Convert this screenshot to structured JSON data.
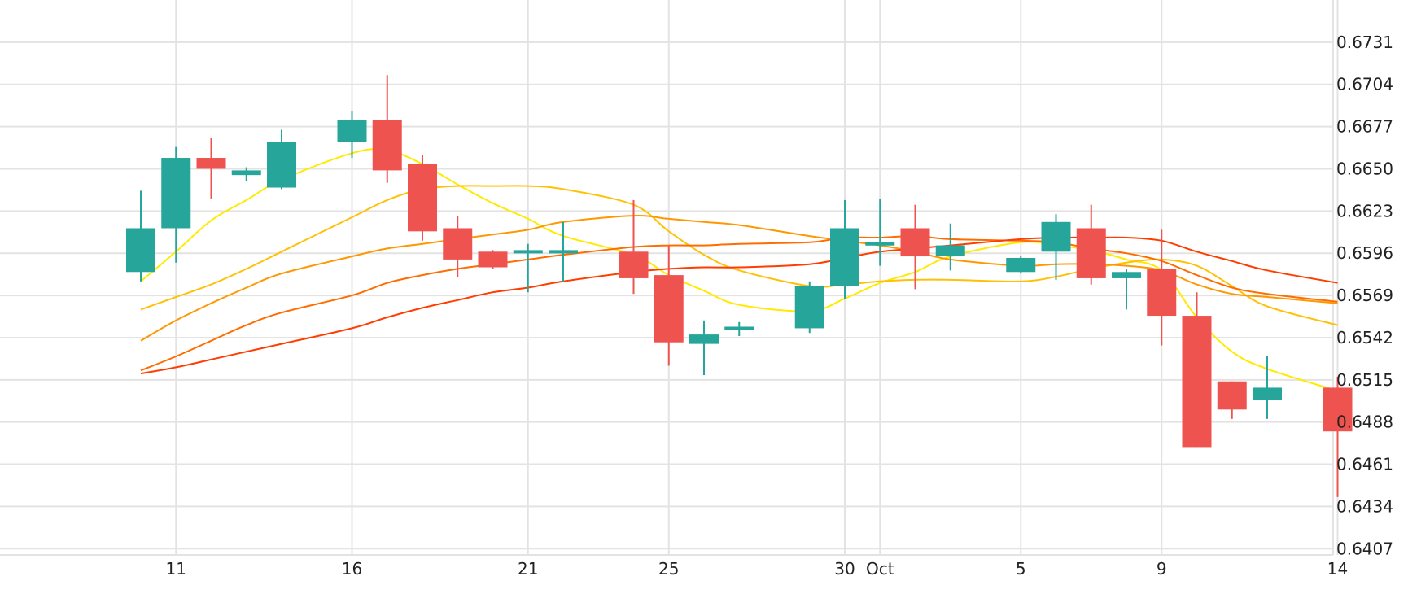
{
  "chart_data": {
    "type": "candlestick",
    "grid": true,
    "colors": {
      "up": "#26a69a",
      "down": "#ef5350",
      "grid": "#e3e3e3",
      "background": "#ffffff",
      "text": "#222222"
    },
    "y_axis": {
      "position": "right",
      "ticks": [
        "0.6731",
        "0.6704",
        "0.6677",
        "0.6650",
        "0.6623",
        "0.6596",
        "0.6569",
        "0.6542",
        "0.6515",
        "0.6488",
        "0.6461",
        "0.6434",
        "0.6407"
      ],
      "range": [
        0.6378,
        0.6758
      ]
    },
    "x_axis": {
      "range": [
        "2023-09-06",
        "2023-10-16"
      ],
      "ticks": [
        {
          "date": "2023-09-11",
          "label": "11"
        },
        {
          "date": "2023-09-16",
          "label": "16"
        },
        {
          "date": "2023-09-21",
          "label": "21"
        },
        {
          "date": "2023-09-25",
          "label": "25"
        },
        {
          "date": "2023-09-30",
          "label": "30"
        },
        {
          "date": "2023-10-01",
          "label": "Oct"
        },
        {
          "date": "2023-10-05",
          "label": "5"
        },
        {
          "date": "2023-10-09",
          "label": "9"
        },
        {
          "date": "2023-10-14",
          "label": "14"
        }
      ]
    },
    "candles": [
      {
        "date": "2023-09-10",
        "open": 0.6584,
        "high": 0.6636,
        "low": 0.6578,
        "close": 0.6612
      },
      {
        "date": "2023-09-11",
        "open": 0.6612,
        "high": 0.6664,
        "low": 0.659,
        "close": 0.6657
      },
      {
        "date": "2023-09-12",
        "open": 0.6657,
        "high": 0.667,
        "low": 0.6631,
        "close": 0.665
      },
      {
        "date": "2023-09-13",
        "open": 0.6646,
        "high": 0.6651,
        "low": 0.6642,
        "close": 0.6649
      },
      {
        "date": "2023-09-14",
        "open": 0.6638,
        "high": 0.6675,
        "low": 0.6637,
        "close": 0.6667
      },
      {
        "date": "2023-09-16",
        "open": 0.6667,
        "high": 0.6687,
        "low": 0.6657,
        "close": 0.6681
      },
      {
        "date": "2023-09-17",
        "open": 0.6681,
        "high": 0.671,
        "low": 0.6641,
        "close": 0.6649
      },
      {
        "date": "2023-09-18",
        "open": 0.6653,
        "high": 0.6659,
        "low": 0.6604,
        "close": 0.661
      },
      {
        "date": "2023-09-19",
        "open": 0.6612,
        "high": 0.662,
        "low": 0.6581,
        "close": 0.6592
      },
      {
        "date": "2023-09-20",
        "open": 0.6597,
        "high": 0.6598,
        "low": 0.6586,
        "close": 0.6587
      },
      {
        "date": "2023-09-21",
        "open": 0.6596,
        "high": 0.6602,
        "low": 0.6571,
        "close": 0.6598
      },
      {
        "date": "2023-09-22",
        "open": 0.6598,
        "high": 0.6616,
        "low": 0.6578,
        "close": 0.6598
      },
      {
        "date": "2023-09-24",
        "open": 0.6597,
        "high": 0.663,
        "low": 0.657,
        "close": 0.658
      },
      {
        "date": "2023-09-25",
        "open": 0.6582,
        "high": 0.6601,
        "low": 0.6524,
        "close": 0.6539
      },
      {
        "date": "2023-09-26",
        "open": 0.6538,
        "high": 0.6553,
        "low": 0.6518,
        "close": 0.6544
      },
      {
        "date": "2023-09-27",
        "open": 0.6548,
        "high": 0.6552,
        "low": 0.6543,
        "close": 0.6549
      },
      {
        "date": "2023-09-29",
        "open": 0.6548,
        "high": 0.6578,
        "low": 0.6545,
        "close": 0.6575
      },
      {
        "date": "2023-09-30",
        "open": 0.6575,
        "high": 0.663,
        "low": 0.6567,
        "close": 0.6612
      },
      {
        "date": "2023-10-01",
        "open": 0.6603,
        "high": 0.6631,
        "low": 0.6588,
        "close": 0.6603
      },
      {
        "date": "2023-10-02",
        "open": 0.6612,
        "high": 0.6627,
        "low": 0.6573,
        "close": 0.6594
      },
      {
        "date": "2023-10-03",
        "open": 0.6594,
        "high": 0.6615,
        "low": 0.6585,
        "close": 0.6601
      },
      {
        "date": "2023-10-05",
        "open": 0.6584,
        "high": 0.6594,
        "low": 0.6583,
        "close": 0.6593
      },
      {
        "date": "2023-10-06",
        "open": 0.6597,
        "high": 0.6621,
        "low": 0.6579,
        "close": 0.6616
      },
      {
        "date": "2023-10-07",
        "open": 0.6612,
        "high": 0.6627,
        "low": 0.6576,
        "close": 0.658
      },
      {
        "date": "2023-10-08",
        "open": 0.658,
        "high": 0.6586,
        "low": 0.656,
        "close": 0.6584
      },
      {
        "date": "2023-10-09",
        "open": 0.6586,
        "high": 0.6611,
        "low": 0.6537,
        "close": 0.6556
      },
      {
        "date": "2023-10-10",
        "open": 0.6556,
        "high": 0.6571,
        "low": 0.6472,
        "close": 0.6472
      },
      {
        "date": "2023-10-11",
        "open": 0.6514,
        "high": 0.6514,
        "low": 0.649,
        "close": 0.6496
      },
      {
        "date": "2023-10-12",
        "open": 0.6502,
        "high": 0.653,
        "low": 0.649,
        "close": 0.651
      },
      {
        "date": "2023-10-14",
        "open": 0.651,
        "high": 0.6517,
        "low": 0.644,
        "close": 0.6482
      }
    ],
    "overlays": [
      {
        "color": "#ffea00",
        "points": [
          [
            "2023-09-10",
            0.6578
          ],
          [
            "2023-09-11",
            0.6597
          ],
          [
            "2023-09-12",
            0.6617
          ],
          [
            "2023-09-13",
            0.663
          ],
          [
            "2023-09-14",
            0.6643
          ],
          [
            "2023-09-16",
            0.666
          ],
          [
            "2023-09-17",
            0.6662
          ],
          [
            "2023-09-18",
            0.6653
          ],
          [
            "2023-09-19",
            0.664
          ],
          [
            "2023-09-20",
            0.6628
          ],
          [
            "2023-09-21",
            0.6618
          ],
          [
            "2023-09-22",
            0.6607
          ],
          [
            "2023-09-24",
            0.6595
          ],
          [
            "2023-09-25",
            0.6582
          ],
          [
            "2023-09-26",
            0.6572
          ],
          [
            "2023-09-27",
            0.6563
          ],
          [
            "2023-09-29",
            0.6559
          ],
          [
            "2023-09-30",
            0.6567
          ],
          [
            "2023-10-01",
            0.6577
          ],
          [
            "2023-10-02",
            0.6584
          ],
          [
            "2023-10-03",
            0.6594
          ],
          [
            "2023-10-05",
            0.6603
          ],
          [
            "2023-10-06",
            0.6601
          ],
          [
            "2023-10-07",
            0.6598
          ],
          [
            "2023-10-08",
            0.6592
          ],
          [
            "2023-10-09",
            0.6585
          ],
          [
            "2023-10-10",
            0.6555
          ],
          [
            "2023-10-11",
            0.6533
          ],
          [
            "2023-10-12",
            0.6522
          ],
          [
            "2023-10-14",
            0.6508
          ]
        ]
      },
      {
        "color": "#ffc107",
        "points": [
          [
            "2023-09-10",
            0.656
          ],
          [
            "2023-09-11",
            0.6568
          ],
          [
            "2023-09-12",
            0.6576
          ],
          [
            "2023-09-13",
            0.6586
          ],
          [
            "2023-09-14",
            0.6597
          ],
          [
            "2023-09-16",
            0.6619
          ],
          [
            "2023-09-17",
            0.663
          ],
          [
            "2023-09-18",
            0.6637
          ],
          [
            "2023-09-19",
            0.6639
          ],
          [
            "2023-09-20",
            0.6639
          ],
          [
            "2023-09-21",
            0.6639
          ],
          [
            "2023-09-22",
            0.6637
          ],
          [
            "2023-09-24",
            0.6627
          ],
          [
            "2023-09-25",
            0.661
          ],
          [
            "2023-09-26",
            0.6595
          ],
          [
            "2023-09-27",
            0.6585
          ],
          [
            "2023-09-29",
            0.6575
          ],
          [
            "2023-09-30",
            0.6576
          ],
          [
            "2023-10-01",
            0.6578
          ],
          [
            "2023-10-02",
            0.6579
          ],
          [
            "2023-10-03",
            0.6579
          ],
          [
            "2023-10-05",
            0.6578
          ],
          [
            "2023-10-06",
            0.6581
          ],
          [
            "2023-10-07",
            0.6586
          ],
          [
            "2023-10-08",
            0.659
          ],
          [
            "2023-10-09",
            0.6592
          ],
          [
            "2023-10-10",
            0.6588
          ],
          [
            "2023-10-11",
            0.6575
          ],
          [
            "2023-10-12",
            0.6562
          ],
          [
            "2023-10-14",
            0.655
          ]
        ]
      },
      {
        "color": "#ff9800",
        "points": [
          [
            "2023-09-10",
            0.654
          ],
          [
            "2023-09-11",
            0.6553
          ],
          [
            "2023-09-12",
            0.6564
          ],
          [
            "2023-09-13",
            0.6574
          ],
          [
            "2023-09-14",
            0.6583
          ],
          [
            "2023-09-16",
            0.6594
          ],
          [
            "2023-09-17",
            0.6599
          ],
          [
            "2023-09-18",
            0.6602
          ],
          [
            "2023-09-19",
            0.6605
          ],
          [
            "2023-09-20",
            0.6608
          ],
          [
            "2023-09-21",
            0.6611
          ],
          [
            "2023-09-22",
            0.6616
          ],
          [
            "2023-09-24",
            0.662
          ],
          [
            "2023-09-25",
            0.6618
          ],
          [
            "2023-09-26",
            0.6616
          ],
          [
            "2023-09-27",
            0.6614
          ],
          [
            "2023-09-29",
            0.6607
          ],
          [
            "2023-09-30",
            0.6604
          ],
          [
            "2023-10-01",
            0.6601
          ],
          [
            "2023-10-02",
            0.6597
          ],
          [
            "2023-10-03",
            0.6592
          ],
          [
            "2023-10-05",
            0.6588
          ],
          [
            "2023-10-06",
            0.6589
          ],
          [
            "2023-10-07",
            0.6589
          ],
          [
            "2023-10-08",
            0.6588
          ],
          [
            "2023-10-09",
            0.6585
          ],
          [
            "2023-10-10",
            0.6576
          ],
          [
            "2023-10-11",
            0.657
          ],
          [
            "2023-10-12",
            0.6568
          ],
          [
            "2023-10-14",
            0.6564
          ]
        ]
      },
      {
        "color": "#ff6d00",
        "points": [
          [
            "2023-09-10",
            0.6521
          ],
          [
            "2023-09-11",
            0.653
          ],
          [
            "2023-09-12",
            0.654
          ],
          [
            "2023-09-13",
            0.655
          ],
          [
            "2023-09-14",
            0.6558
          ],
          [
            "2023-09-16",
            0.6569
          ],
          [
            "2023-09-17",
            0.6577
          ],
          [
            "2023-09-18",
            0.6582
          ],
          [
            "2023-09-19",
            0.6586
          ],
          [
            "2023-09-20",
            0.6589
          ],
          [
            "2023-09-21",
            0.6592
          ],
          [
            "2023-09-22",
            0.6595
          ],
          [
            "2023-09-24",
            0.66
          ],
          [
            "2023-09-25",
            0.6601
          ],
          [
            "2023-09-26",
            0.6601
          ],
          [
            "2023-09-27",
            0.6602
          ],
          [
            "2023-09-29",
            0.6603
          ],
          [
            "2023-09-30",
            0.6606
          ],
          [
            "2023-10-01",
            0.6606
          ],
          [
            "2023-10-02",
            0.6607
          ],
          [
            "2023-10-03",
            0.6605
          ],
          [
            "2023-10-05",
            0.6604
          ],
          [
            "2023-10-06",
            0.6603
          ],
          [
            "2023-10-07",
            0.6599
          ],
          [
            "2023-10-08",
            0.6596
          ],
          [
            "2023-10-09",
            0.6591
          ],
          [
            "2023-10-10",
            0.6582
          ],
          [
            "2023-10-11",
            0.6574
          ],
          [
            "2023-10-12",
            0.657
          ],
          [
            "2023-10-14",
            0.6565
          ]
        ]
      },
      {
        "color": "#ff3d00",
        "points": [
          [
            "2023-09-10",
            0.6519
          ],
          [
            "2023-09-11",
            0.6523
          ],
          [
            "2023-09-12",
            0.6528
          ],
          [
            "2023-09-13",
            0.6533
          ],
          [
            "2023-09-14",
            0.6538
          ],
          [
            "2023-09-16",
            0.6548
          ],
          [
            "2023-09-17",
            0.6555
          ],
          [
            "2023-09-18",
            0.6561
          ],
          [
            "2023-09-19",
            0.6566
          ],
          [
            "2023-09-20",
            0.6571
          ],
          [
            "2023-09-21",
            0.6574
          ],
          [
            "2023-09-22",
            0.6578
          ],
          [
            "2023-09-24",
            0.6584
          ],
          [
            "2023-09-25",
            0.6586
          ],
          [
            "2023-09-26",
            0.6587
          ],
          [
            "2023-09-27",
            0.6587
          ],
          [
            "2023-09-29",
            0.6589
          ],
          [
            "2023-09-30",
            0.6593
          ],
          [
            "2023-10-01",
            0.6597
          ],
          [
            "2023-10-02",
            0.6599
          ],
          [
            "2023-10-03",
            0.6601
          ],
          [
            "2023-10-05",
            0.6605
          ],
          [
            "2023-10-06",
            0.6606
          ],
          [
            "2023-10-07",
            0.6606
          ],
          [
            "2023-10-08",
            0.6606
          ],
          [
            "2023-10-09",
            0.6604
          ],
          [
            "2023-10-10",
            0.6597
          ],
          [
            "2023-10-11",
            0.6591
          ],
          [
            "2023-10-12",
            0.6585
          ],
          [
            "2023-10-14",
            0.6577
          ]
        ]
      }
    ]
  }
}
